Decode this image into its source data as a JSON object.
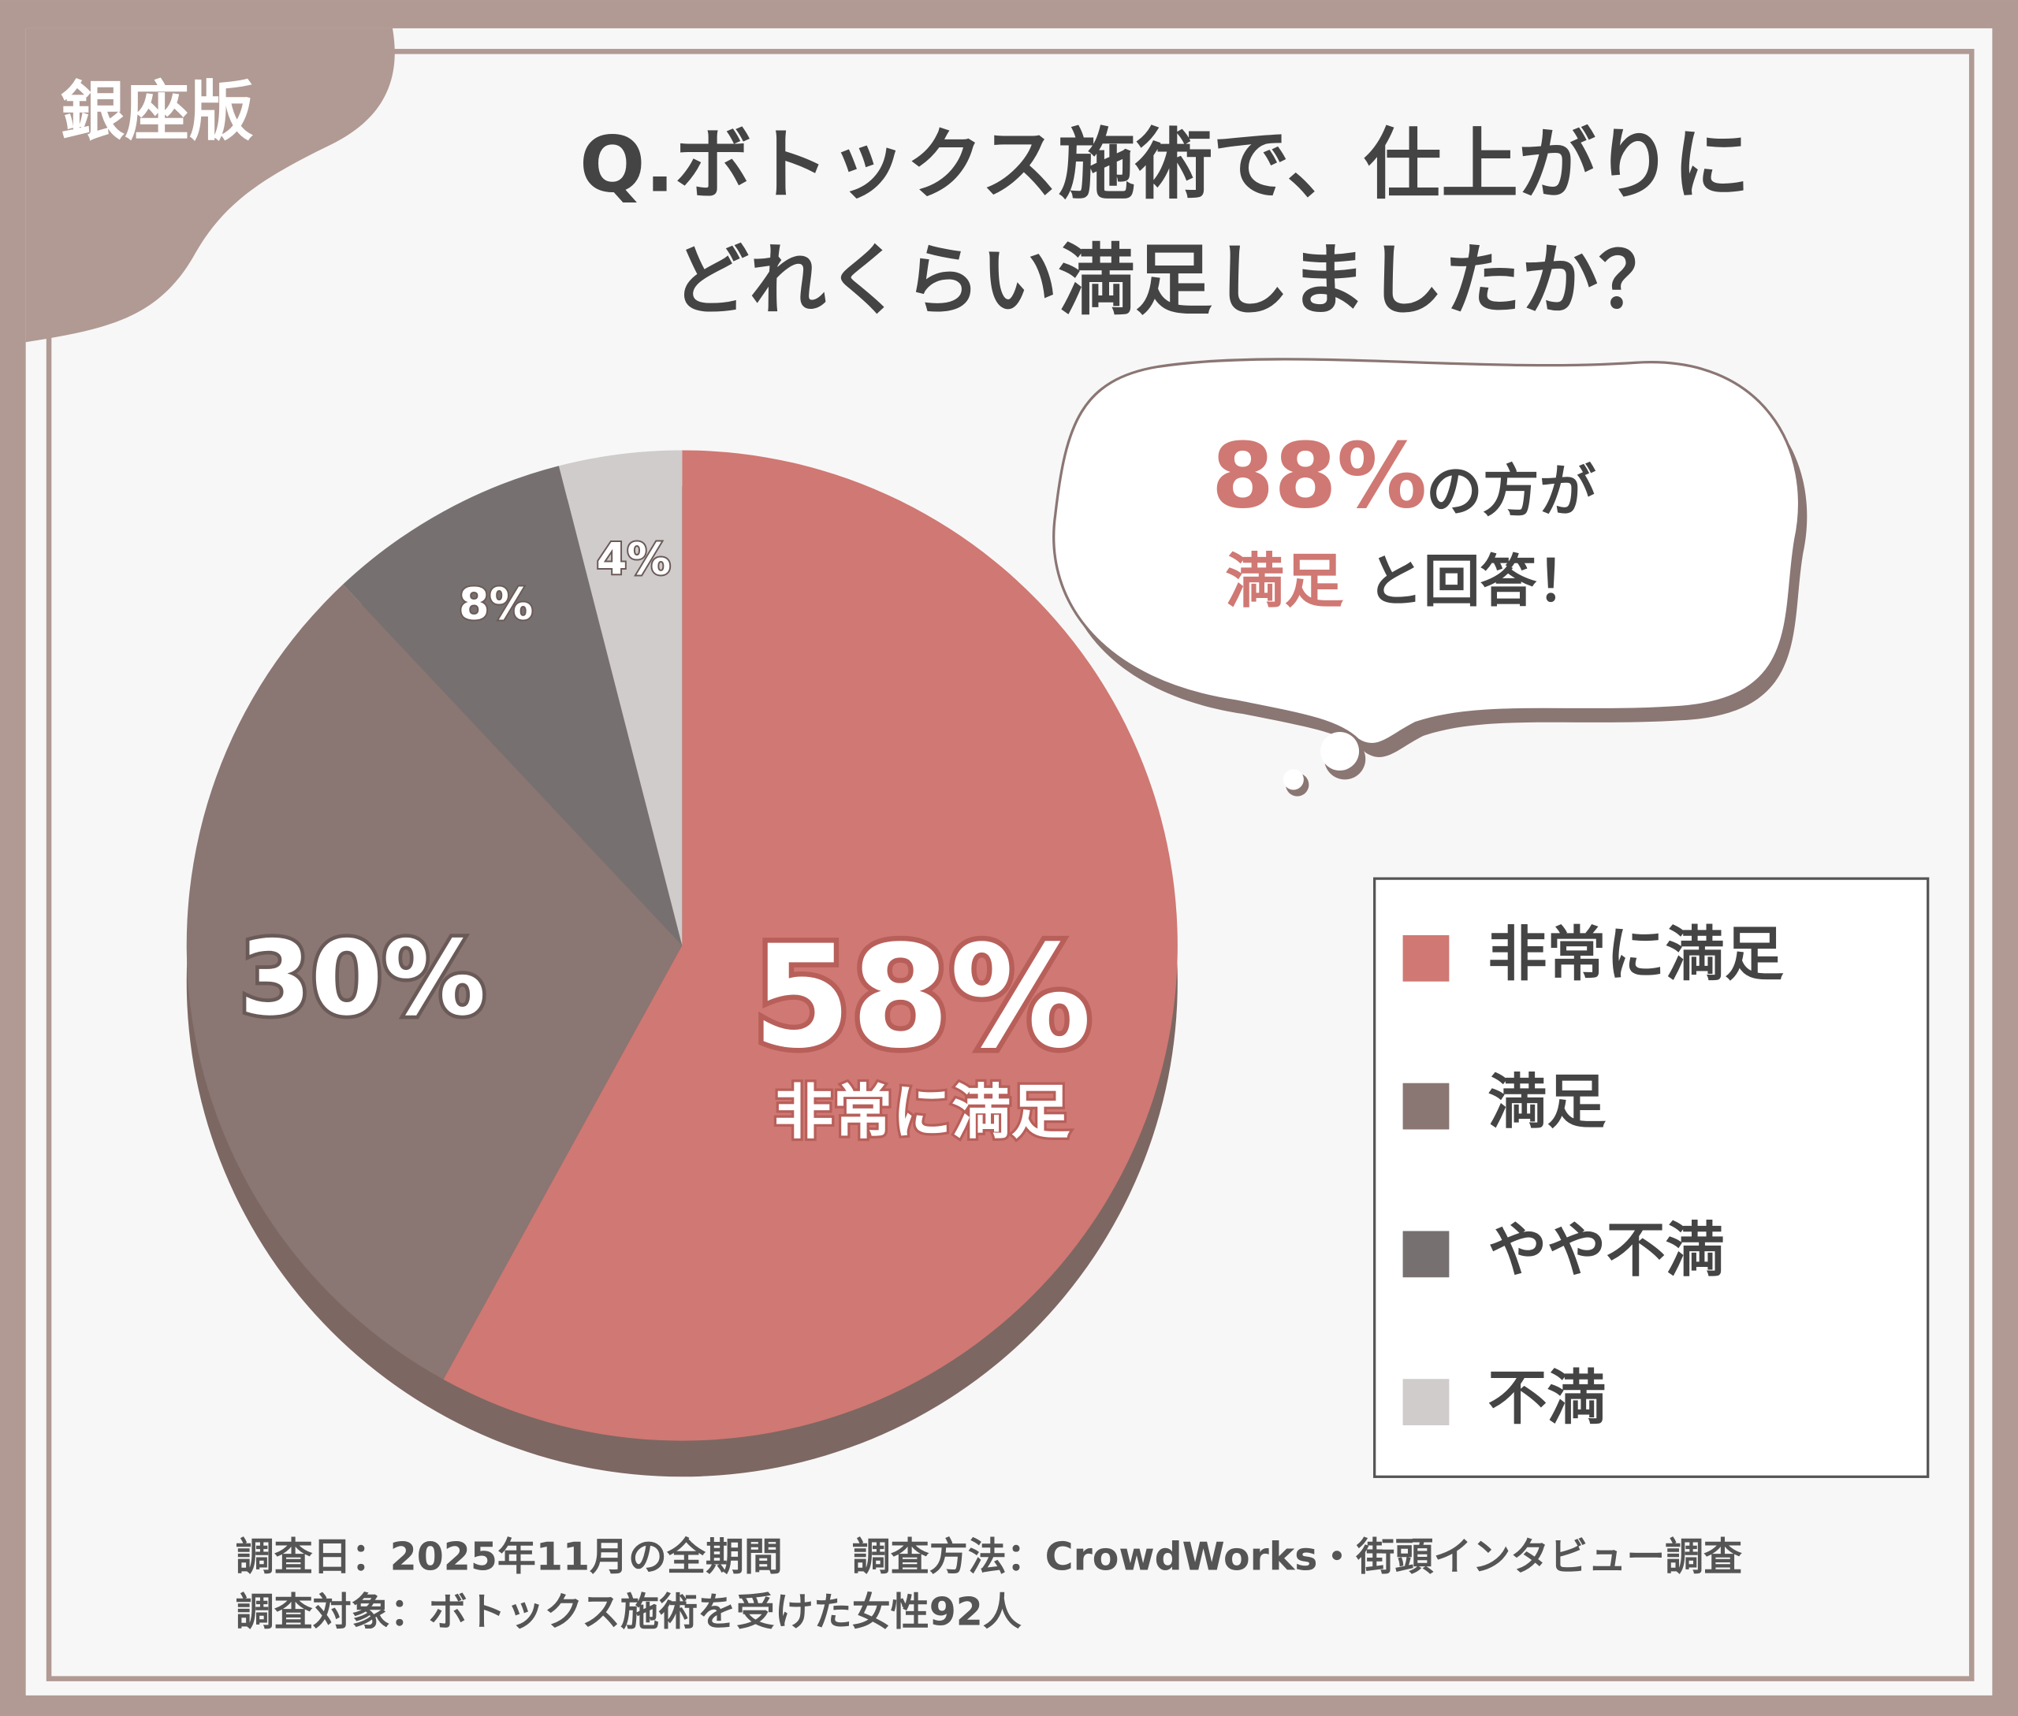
{
  "chart_data": {
    "type": "pie",
    "badge": "銀座版",
    "title_lines": [
      "Q.ボトックス施術で、仕上がりに",
      "どれくらい満足しましたか？"
    ],
    "callout": [
      "88%",
      "の方が",
      "満足",
      "と回答！"
    ],
    "categories": [
      "非常に満足",
      "満足",
      "やや不満",
      "不満"
    ],
    "values": [
      58,
      30,
      8,
      4
    ],
    "value_labels": [
      "58%",
      "30%",
      "8%",
      "4%"
    ],
    "colors": [
      "#d07873",
      "#8a7673",
      "#767170",
      "#cfcccb"
    ],
    "legend": "right",
    "notes": [
      "調査日：2025年11月の全期間",
      "調査方法：CrowdWorks・街頭インタビュー調査",
      "調査対象：ボトックス施術を受けた女性92人"
    ]
  }
}
